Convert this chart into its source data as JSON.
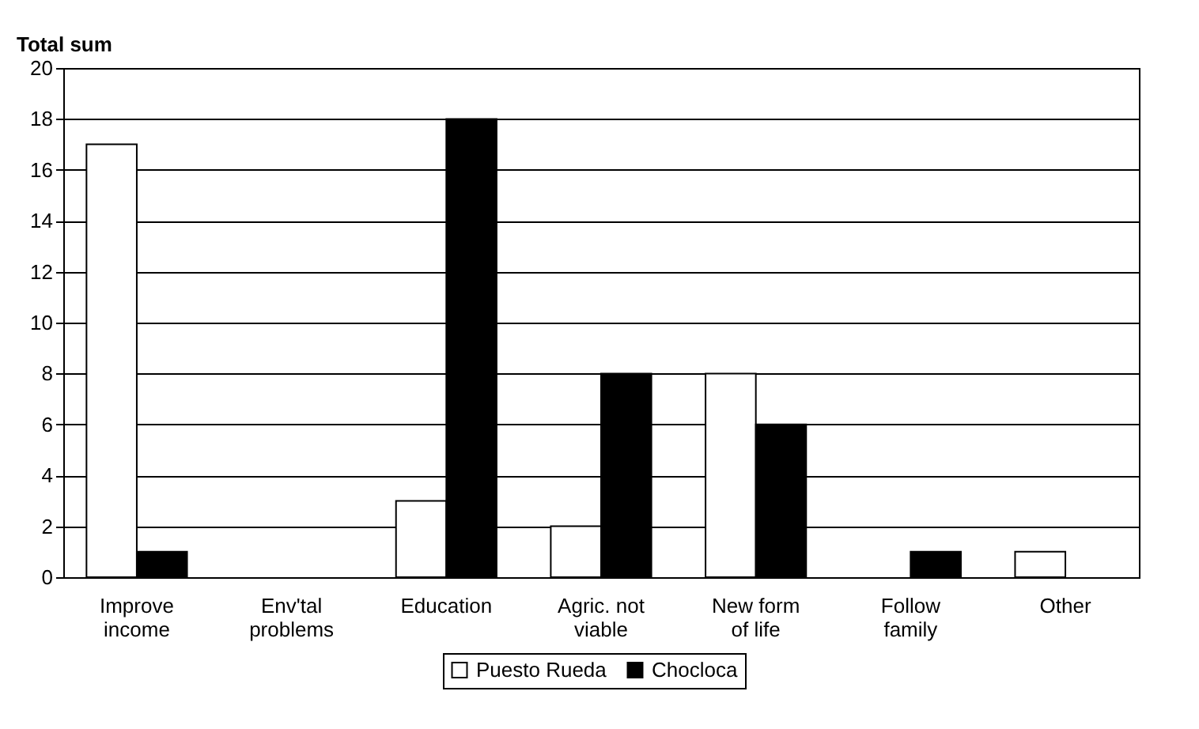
{
  "chart_data": {
    "type": "bar",
    "ylabel": "Total sum",
    "categories": [
      "Improve income",
      "Env'tal problems",
      "Education",
      "Agric. not viable",
      "New form of life",
      "Follow family",
      "Other"
    ],
    "series": [
      {
        "name": "Puesto Rueda",
        "color": "#ffffff",
        "values": [
          17,
          null,
          3,
          2,
          8,
          null,
          1
        ]
      },
      {
        "name": "Chocloca",
        "color": "#000000",
        "values": [
          1,
          null,
          18,
          8,
          6,
          1,
          null
        ]
      }
    ],
    "ylim": [
      0,
      20
    ],
    "yticks": [
      0,
      2,
      4,
      6,
      8,
      10,
      12,
      14,
      16,
      18,
      20
    ],
    "grid": "y",
    "legend": "bottom"
  }
}
